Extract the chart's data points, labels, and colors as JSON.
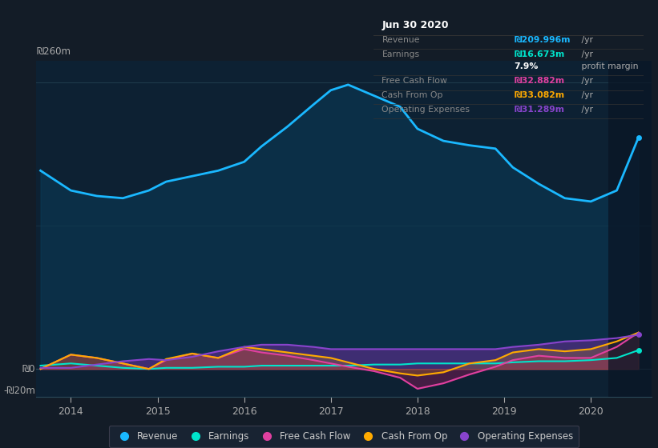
{
  "bg_color": "#131c27",
  "plot_bg_color": "#0d2133",
  "chart_bg_dark": "#0a1929",
  "grid_color": "#1e3a4a",
  "x_ticks": [
    2014,
    2015,
    2016,
    2017,
    2018,
    2019,
    2020
  ],
  "ylim": [
    -25,
    280
  ],
  "xlim": [
    2013.6,
    2020.7
  ],
  "revenue_color": "#1ab8ff",
  "earnings_color": "#00e5cc",
  "fcf_color": "#e040a0",
  "cashfromop_color": "#ffaa00",
  "opex_color": "#8844cc",
  "revenue_fill_color": "#0a3a55",
  "opex_fill_color": "#5b2d8a",
  "fcf_fill_color": "#8b1a5a",
  "ylabel_260": "₪260m",
  "ylabel_0": "₪0",
  "ylabel_neg20": "-₪20m",
  "revenue_x": [
    2013.65,
    2014.0,
    2014.3,
    2014.6,
    2014.9,
    2015.1,
    2015.4,
    2015.7,
    2016.0,
    2016.2,
    2016.5,
    2016.8,
    2017.0,
    2017.2,
    2017.5,
    2017.8,
    2018.0,
    2018.3,
    2018.6,
    2018.9,
    2019.1,
    2019.4,
    2019.7,
    2020.0,
    2020.3,
    2020.55
  ],
  "revenue_y": [
    180,
    162,
    157,
    155,
    162,
    170,
    175,
    180,
    188,
    202,
    220,
    240,
    253,
    258,
    248,
    238,
    218,
    207,
    203,
    200,
    183,
    168,
    155,
    152,
    162,
    210
  ],
  "earnings_x": [
    2013.65,
    2014.0,
    2014.3,
    2014.6,
    2014.9,
    2015.1,
    2015.4,
    2015.7,
    2016.0,
    2016.2,
    2016.5,
    2016.8,
    2017.0,
    2017.2,
    2017.5,
    2017.8,
    2018.0,
    2018.3,
    2018.6,
    2018.9,
    2019.1,
    2019.4,
    2019.7,
    2020.0,
    2020.3,
    2020.55
  ],
  "earnings_y": [
    3,
    5,
    3,
    1,
    0,
    1,
    1,
    2,
    2,
    3,
    3,
    3,
    3,
    3,
    4,
    4,
    5,
    5,
    5,
    5,
    6,
    7,
    7,
    8,
    10,
    17
  ],
  "fcf_x": [
    2013.65,
    2014.0,
    2014.3,
    2014.6,
    2014.9,
    2015.1,
    2015.4,
    2015.7,
    2016.0,
    2016.2,
    2016.5,
    2016.8,
    2017.0,
    2017.2,
    2017.5,
    2017.8,
    2018.0,
    2018.3,
    2018.6,
    2018.9,
    2019.1,
    2019.4,
    2019.7,
    2020.0,
    2020.3,
    2020.55
  ],
  "fcf_y": [
    0,
    13,
    10,
    5,
    0,
    8,
    14,
    10,
    18,
    15,
    12,
    8,
    5,
    2,
    -2,
    -8,
    -18,
    -13,
    -5,
    2,
    8,
    12,
    10,
    10,
    20,
    33
  ],
  "cashfromop_x": [
    2013.65,
    2014.0,
    2014.3,
    2014.6,
    2014.9,
    2015.1,
    2015.4,
    2015.7,
    2016.0,
    2016.2,
    2016.5,
    2016.8,
    2017.0,
    2017.2,
    2017.5,
    2017.8,
    2018.0,
    2018.3,
    2018.6,
    2018.9,
    2019.1,
    2019.4,
    2019.7,
    2020.0,
    2020.3,
    2020.55
  ],
  "cashfromop_y": [
    0,
    13,
    10,
    5,
    0,
    9,
    14,
    10,
    20,
    18,
    15,
    12,
    10,
    6,
    0,
    -4,
    -6,
    -3,
    5,
    8,
    15,
    18,
    16,
    18,
    25,
    33
  ],
  "opex_x": [
    2013.65,
    2014.0,
    2014.3,
    2014.6,
    2014.9,
    2015.1,
    2015.4,
    2015.7,
    2016.0,
    2016.2,
    2016.5,
    2016.8,
    2017.0,
    2017.2,
    2017.5,
    2017.8,
    2018.0,
    2018.3,
    2018.6,
    2018.9,
    2019.1,
    2019.4,
    2019.7,
    2020.0,
    2020.3,
    2020.55
  ],
  "opex_y": [
    1,
    1,
    4,
    7,
    9,
    8,
    11,
    16,
    20,
    22,
    22,
    20,
    18,
    18,
    18,
    18,
    18,
    18,
    18,
    18,
    20,
    22,
    25,
    26,
    28,
    31
  ],
  "infobox_date": "Jun 30 2020",
  "infobox_rows": [
    {
      "label": "Revenue",
      "value": "₪209.996m",
      "suffix": " /yr",
      "color": "#1ab8ff"
    },
    {
      "label": "Earnings",
      "value": "₪16.673m",
      "suffix": " /yr",
      "color": "#00e5cc"
    },
    {
      "label": "",
      "value": "7.9%",
      "suffix": " profit margin",
      "color": "#ffffff"
    },
    {
      "label": "Free Cash Flow",
      "value": "₪32.882m",
      "suffix": " /yr",
      "color": "#e040a0"
    },
    {
      "label": "Cash From Op",
      "value": "₪33.082m",
      "suffix": " /yr",
      "color": "#ffaa00"
    },
    {
      "label": "Operating Expenses",
      "value": "₪31.289m",
      "suffix": " /yr",
      "color": "#8844cc"
    }
  ],
  "legend_items": [
    {
      "label": "Revenue",
      "color": "#1ab8ff"
    },
    {
      "label": "Earnings",
      "color": "#00e5cc"
    },
    {
      "label": "Free Cash Flow",
      "color": "#e040a0"
    },
    {
      "label": "Cash From Op",
      "color": "#ffaa00"
    },
    {
      "label": "Operating Expenses",
      "color": "#8844cc"
    }
  ]
}
